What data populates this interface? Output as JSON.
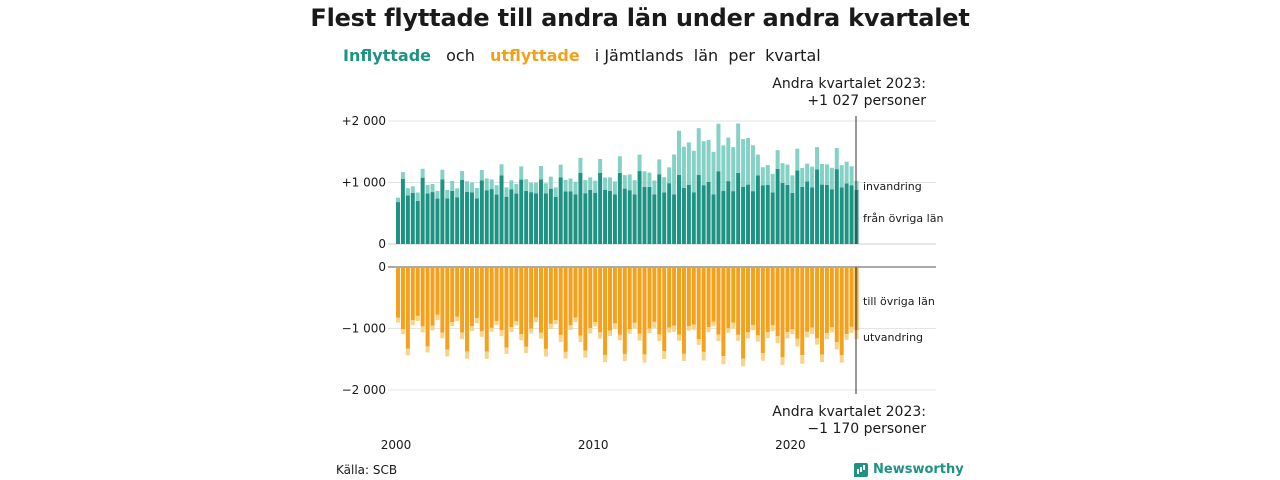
{
  "title": "Flest flyttade till andra län under andra kvartalet",
  "subtitle": {
    "inflyttade": "Inflyttade",
    "och": "och",
    "utflyttade": "utflyttade",
    "rest": "i Jämtlands  län  per  kvartal"
  },
  "annotation_top": {
    "line1": "Andra kvartalet 2023:",
    "line2": "+1 027 personer"
  },
  "annotation_bottom": {
    "line1": "Andra kvartalet 2023:",
    "line2": "−1 170 personer"
  },
  "source": "Källa: SCB",
  "brand": "Newsworthy",
  "colors": {
    "in_dark": "#1e9384",
    "in_light": "#86d1c6",
    "out_dark": "#f5a11c",
    "out_light": "#f8d38a"
  },
  "chart_data": {
    "type": "bar",
    "x_range": [
      "2000 Q1",
      "2023 Q2"
    ],
    "top_panel": {
      "y_ticks": [
        {
          "value": 2000,
          "label": "+2 000"
        },
        {
          "value": 1000,
          "label": "+1 000"
        },
        {
          "value": 0,
          "label": "0"
        }
      ],
      "ylim": [
        0,
        2000
      ],
      "series": [
        {
          "name": "från övriga län",
          "base_by_quarter": [
            720,
            1030,
            780,
            830
          ],
          "trend_per_year": 8
        },
        {
          "name": "invandring",
          "base_by_quarter": [
            100,
            130,
            120,
            110
          ],
          "trend_per_year": 10
        }
      ],
      "last_point": {
        "från övriga län": 880,
        "invandring": 147
      }
    },
    "bottom_panel": {
      "y_ticks": [
        {
          "value": 0,
          "label": "0"
        },
        {
          "value": -1000,
          "label": "−1 000"
        },
        {
          "value": -2000,
          "label": "−2 000"
        }
      ],
      "ylim": [
        -2000,
        0
      ],
      "series": [
        {
          "name": "till övriga län",
          "base_by_quarter": [
            -800,
            -1000,
            -1300,
            -900
          ],
          "trend_per_year": -8
        },
        {
          "name": "utvandring",
          "base_by_quarter": [
            -70,
            -90,
            -110,
            -70
          ],
          "trend_per_year": -1
        }
      ],
      "last_point": {
        "till övriga län": -1030,
        "utvandring": -140
      }
    },
    "x_ticks": [
      "2000",
      "2010",
      "2020"
    ]
  }
}
